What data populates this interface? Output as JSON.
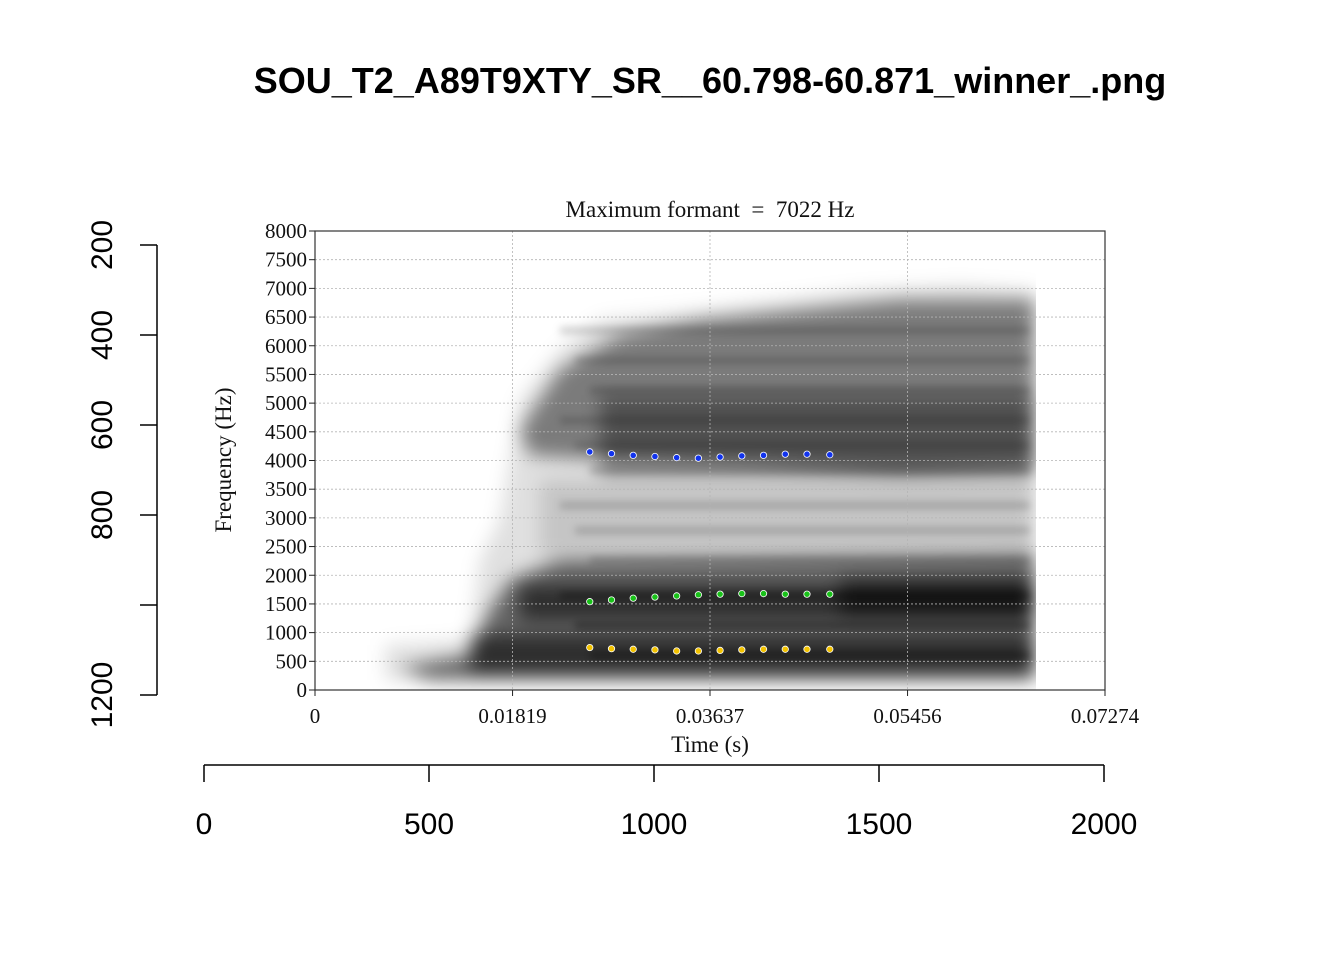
{
  "page_title": "SOU_T2_A89T9XTY_SR__60.798-60.871_winner_.png",
  "colors": {
    "f1": "#f2c200",
    "f2": "#19c219",
    "f3": "#1133ee",
    "grid": "#b4b4b4",
    "axis": "#000000"
  },
  "outer_axes": {
    "left": {
      "ticks": [
        200,
        400,
        600,
        800,
        1000,
        1200
      ],
      "labels": [
        "200",
        "400",
        "600",
        "800",
        "",
        "1200"
      ],
      "range": [
        200,
        1200
      ],
      "reversed": true
    },
    "bottom": {
      "ticks": [
        0,
        500,
        1000,
        1500,
        2000
      ],
      "labels": [
        "0",
        "500",
        "1000",
        "1500",
        "2000"
      ],
      "range": [
        0,
        2000
      ]
    }
  },
  "chart_data": {
    "type": "scatter",
    "title": "Maximum formant  =  7022 Hz",
    "xlabel": "Time (s)",
    "ylabel": "Frequency (Hz)",
    "xlim": [
      0,
      0.07274
    ],
    "ylim": [
      0,
      8000
    ],
    "x_ticks": [
      "0",
      "0.01819",
      "0.03637",
      "0.05456",
      "0.07274"
    ],
    "x_tick_values": [
      0,
      0.01819,
      0.03637,
      0.05456,
      0.07274
    ],
    "y_ticks": [
      0,
      500,
      1000,
      1500,
      2000,
      2500,
      3000,
      3500,
      4000,
      4500,
      5000,
      5500,
      6000,
      6500,
      7000,
      7500,
      8000
    ],
    "y_tick_labels": [
      "0",
      "500",
      "1000",
      "1500",
      "2000",
      "2500",
      "3000",
      "3500",
      "4000",
      "4500",
      "5000",
      "5500",
      "6000",
      "6500",
      "7000",
      "7500",
      "8000"
    ],
    "grid": true,
    "background": "spectrogram",
    "x": [
      0.0253,
      0.0273,
      0.0293,
      0.0313,
      0.0333,
      0.0353,
      0.0373,
      0.0393,
      0.0413,
      0.0433,
      0.0453,
      0.0474
    ],
    "series": [
      {
        "key": "f1",
        "values": [
          740,
          720,
          710,
          700,
          680,
          680,
          690,
          700,
          710,
          710,
          710,
          710
        ]
      },
      {
        "key": "f2",
        "values": [
          1540,
          1570,
          1600,
          1620,
          1640,
          1660,
          1670,
          1680,
          1680,
          1670,
          1670,
          1670
        ]
      },
      {
        "key": "f3",
        "values": [
          4150,
          4120,
          4090,
          4070,
          4050,
          4040,
          4060,
          4080,
          4090,
          4110,
          4110,
          4100
        ]
      }
    ]
  }
}
